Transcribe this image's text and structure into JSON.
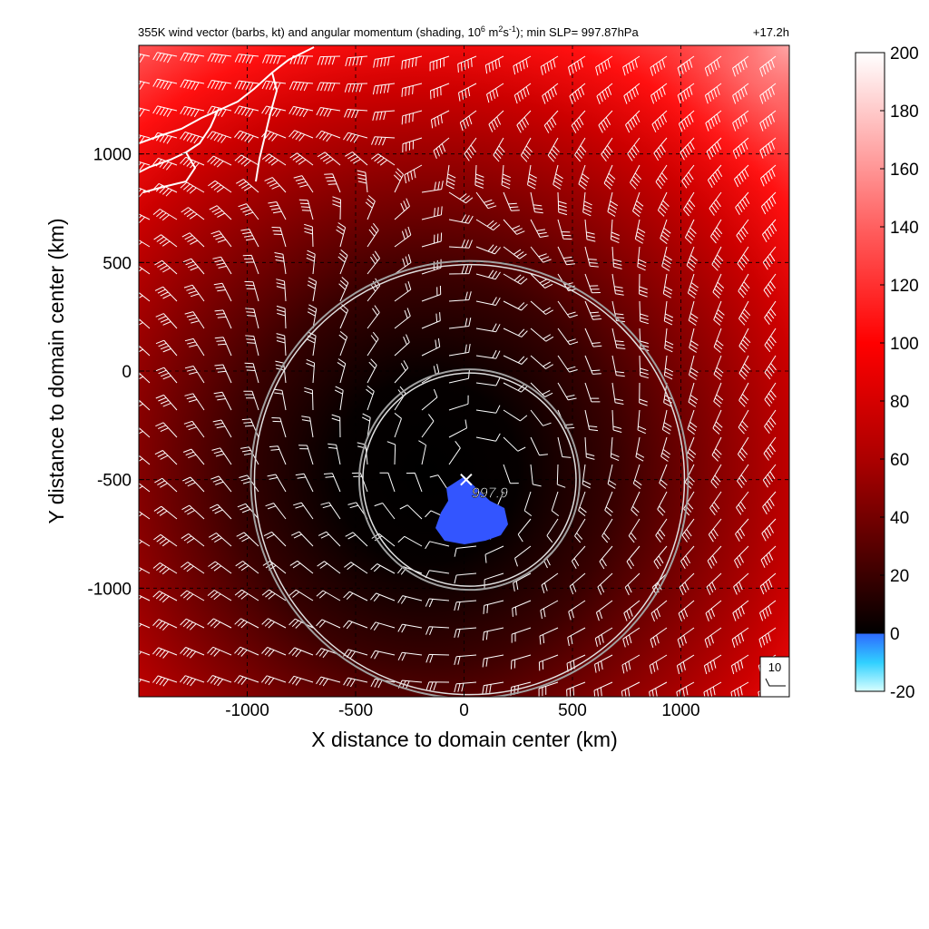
{
  "title_parts": {
    "main": "355K wind vector (barbs, kt) and angular momentum (shading, 10",
    "exp1": "6",
    "unit_m": " m",
    "exp2": "2",
    "unit_s": "s",
    "exp3": "-1",
    "tail": "); min SLP= 997.87hPa",
    "time": "+17.2h"
  },
  "chart_data": {
    "type": "heatmap",
    "xlabel": "X distance to domain center (km)",
    "ylabel": "Y distance to domain center (km)",
    "xlim": [
      -1500,
      1500
    ],
    "ylim": [
      -1500,
      1500
    ],
    "xticks": [
      -1000,
      -500,
      0,
      500,
      1000
    ],
    "yticks": [
      -1000,
      -500,
      0,
      500,
      1000
    ],
    "xtick_labels": [
      "-1000",
      "-500",
      "0",
      "500",
      "1000"
    ],
    "ytick_labels": [
      "-1000",
      "-500",
      "0",
      "500",
      "1000"
    ],
    "grid": true,
    "colorbar": {
      "min": -20,
      "max": 200,
      "ticks": [
        -20,
        0,
        20,
        40,
        60,
        80,
        100,
        120,
        140,
        160,
        180,
        200
      ],
      "tick_labels": [
        "-20",
        "0",
        "20",
        "40",
        "60",
        "80",
        "100",
        "120",
        "140",
        "160",
        "180",
        "200"
      ],
      "stops": [
        {
          "value": -20,
          "color": "#d8ffff"
        },
        {
          "value": -10,
          "color": "#30d0ff"
        },
        {
          "value": 0,
          "color": "#2e6bff"
        },
        {
          "value": 0.01,
          "color": "#000000"
        },
        {
          "value": 30,
          "color": "#5a0000"
        },
        {
          "value": 60,
          "color": "#aa0000"
        },
        {
          "value": 100,
          "color": "#ff0000"
        },
        {
          "value": 140,
          "color": "#ff6060"
        },
        {
          "value": 200,
          "color": "#ffffff"
        }
      ]
    },
    "center_marker": {
      "x": 10,
      "y": -500,
      "label": "997.9"
    },
    "radius_circles_km": [
      500,
      1000
    ],
    "circle_center": {
      "x": 25,
      "y": -500
    },
    "barb_reference_label": "10",
    "minimum_slp_hpa": 997.87,
    "negative_region_color": "#3355ff"
  }
}
